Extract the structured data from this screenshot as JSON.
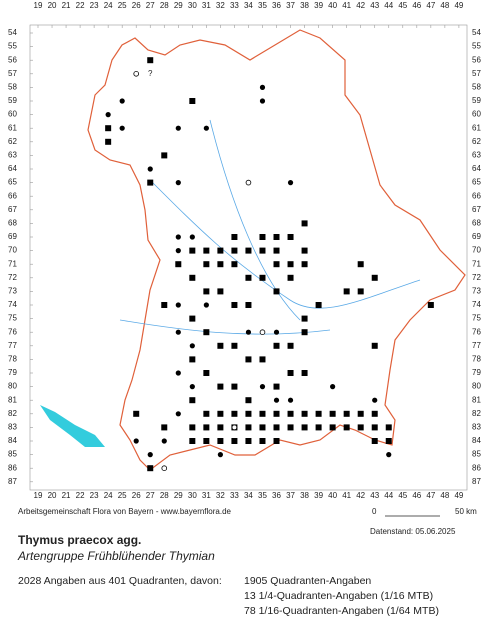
{
  "map": {
    "columns": [
      19,
      20,
      21,
      22,
      23,
      24,
      25,
      26,
      27,
      28,
      29,
      30,
      31,
      32,
      33,
      34,
      35,
      36,
      37,
      38,
      39,
      40,
      41,
      42,
      43,
      44,
      45,
      46,
      47,
      48,
      49
    ],
    "rows": [
      54,
      55,
      56,
      57,
      58,
      59,
      60,
      61,
      62,
      63,
      64,
      65,
      66,
      67,
      68,
      69,
      70,
      71,
      72,
      73,
      74,
      75,
      76,
      77,
      78,
      79,
      80,
      81,
      82,
      83,
      84,
      85,
      86,
      87
    ],
    "squares": [
      [
        27,
        56
      ],
      [
        24,
        61
      ],
      [
        24,
        62
      ],
      [
        28,
        63
      ],
      [
        30,
        59
      ],
      [
        27,
        65
      ],
      [
        33,
        69
      ],
      [
        34,
        70
      ],
      [
        35,
        70
      ],
      [
        36,
        70
      ],
      [
        37,
        69
      ],
      [
        38,
        68
      ],
      [
        38,
        70
      ],
      [
        31,
        71
      ],
      [
        32,
        71
      ],
      [
        33,
        71
      ],
      [
        34,
        72
      ],
      [
        35,
        72
      ],
      [
        36,
        71
      ],
      [
        37,
        71
      ],
      [
        38,
        71
      ],
      [
        30,
        72
      ],
      [
        31,
        73
      ],
      [
        32,
        73
      ],
      [
        33,
        74
      ],
      [
        34,
        74
      ],
      [
        36,
        73
      ],
      [
        37,
        72
      ],
      [
        42,
        71
      ],
      [
        41,
        73
      ],
      [
        42,
        73
      ],
      [
        43,
        72
      ],
      [
        47,
        74
      ],
      [
        39,
        74
      ],
      [
        28,
        74
      ],
      [
        30,
        75
      ],
      [
        31,
        76
      ],
      [
        32,
        77
      ],
      [
        33,
        77
      ],
      [
        34,
        78
      ],
      [
        35,
        78
      ],
      [
        36,
        77
      ],
      [
        37,
        77
      ],
      [
        38,
        76
      ],
      [
        38,
        75
      ],
      [
        30,
        78
      ],
      [
        31,
        79
      ],
      [
        32,
        80
      ],
      [
        33,
        80
      ],
      [
        34,
        81
      ],
      [
        36,
        80
      ],
      [
        37,
        79
      ],
      [
        38,
        79
      ],
      [
        43,
        77
      ],
      [
        30,
        81
      ],
      [
        31,
        82
      ],
      [
        32,
        82
      ],
      [
        33,
        82
      ],
      [
        34,
        82
      ],
      [
        35,
        82
      ],
      [
        36,
        82
      ],
      [
        37,
        82
      ],
      [
        38,
        82
      ],
      [
        39,
        82
      ],
      [
        40,
        82
      ],
      [
        41,
        82
      ],
      [
        42,
        82
      ],
      [
        43,
        82
      ],
      [
        30,
        83
      ],
      [
        31,
        83
      ],
      [
        32,
        83
      ],
      [
        33,
        83
      ],
      [
        34,
        83
      ],
      [
        35,
        83
      ],
      [
        36,
        83
      ],
      [
        37,
        83
      ],
      [
        38,
        83
      ],
      [
        39,
        83
      ],
      [
        40,
        83
      ],
      [
        41,
        83
      ],
      [
        42,
        83
      ],
      [
        43,
        83
      ],
      [
        44,
        83
      ],
      [
        30,
        84
      ],
      [
        31,
        84
      ],
      [
        32,
        84
      ],
      [
        33,
        84
      ],
      [
        34,
        84
      ],
      [
        35,
        84
      ],
      [
        36,
        84
      ],
      [
        43,
        84
      ],
      [
        44,
        84
      ],
      [
        27,
        86
      ],
      [
        28,
        83
      ],
      [
        26,
        82
      ],
      [
        31,
        70
      ],
      [
        32,
        70
      ],
      [
        33,
        70
      ],
      [
        30,
        70
      ],
      [
        29,
        71
      ],
      [
        35,
        69
      ],
      [
        36,
        69
      ]
    ],
    "dots": [
      [
        25,
        59
      ],
      [
        24,
        60
      ],
      [
        25,
        61
      ],
      [
        29,
        61
      ],
      [
        31,
        61
      ],
      [
        27,
        64
      ],
      [
        29,
        65
      ],
      [
        37,
        65
      ],
      [
        35,
        58
      ],
      [
        35,
        59
      ],
      [
        29,
        69
      ],
      [
        30,
        69
      ],
      [
        29,
        70
      ],
      [
        31,
        74
      ],
      [
        29,
        76
      ],
      [
        30,
        77
      ],
      [
        29,
        79
      ],
      [
        30,
        80
      ],
      [
        29,
        82
      ],
      [
        28,
        84
      ],
      [
        26,
        84
      ],
      [
        27,
        85
      ],
      [
        32,
        85
      ],
      [
        44,
        85
      ],
      [
        35,
        80
      ],
      [
        36,
        81
      ],
      [
        37,
        81
      ],
      [
        40,
        80
      ],
      [
        43,
        81
      ],
      [
        29,
        74
      ],
      [
        34,
        76
      ],
      [
        36,
        76
      ]
    ],
    "circles": [
      [
        26,
        57
      ],
      [
        34,
        65
      ],
      [
        35,
        76
      ],
      [
        28,
        86
      ],
      [
        33,
        83
      ]
    ],
    "annotations": [
      {
        "text": "?",
        "col": 27,
        "row": 57
      }
    ]
  },
  "footer": {
    "credit": "Arbeitsgemeinschaft Flora von Bayern - www.bayernflora.de",
    "scale_start": "0",
    "scale_end": "50 km",
    "date": "Datenstand: 05.06.2025",
    "title": "Thymus praecox agg.",
    "subtitle": "Artengruppe Frühblühender Thymian",
    "summary": "2028 Angaben aus 401 Quadranten, davon:",
    "counts": [
      "1905 Quadranten-Angaben",
      "13 1/4-Quadranten-Angaben (1/16 MTB)",
      "78 1/16-Quadranten-Angaben (1/64 MTB)"
    ]
  }
}
